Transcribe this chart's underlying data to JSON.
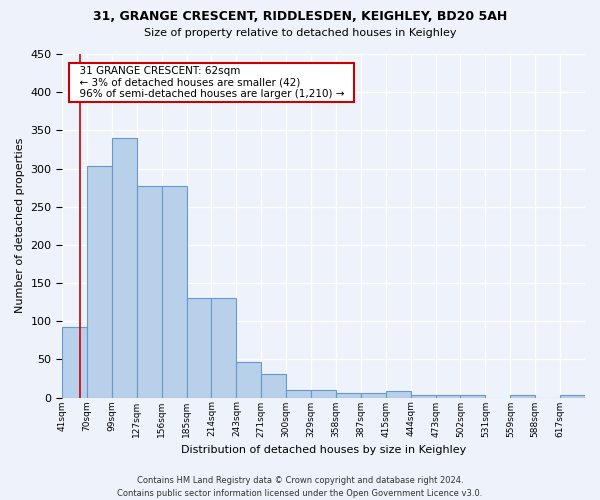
{
  "title1": "31, GRANGE CRESCENT, RIDDLESDEN, KEIGHLEY, BD20 5AH",
  "title2": "Size of property relative to detached houses in Keighley",
  "xlabel": "Distribution of detached houses by size in Keighley",
  "ylabel": "Number of detached properties",
  "footnote": "Contains HM Land Registry data © Crown copyright and database right 2024.\nContains public sector information licensed under the Open Government Licence v3.0.",
  "bin_labels": [
    "41sqm",
    "70sqm",
    "99sqm",
    "127sqm",
    "156sqm",
    "185sqm",
    "214sqm",
    "243sqm",
    "271sqm",
    "300sqm",
    "329sqm",
    "358sqm",
    "387sqm",
    "415sqm",
    "444sqm",
    "473sqm",
    "502sqm",
    "531sqm",
    "559sqm",
    "588sqm",
    "617sqm"
  ],
  "bar_heights": [
    92,
    303,
    340,
    277,
    277,
    131,
    131,
    46,
    31,
    10,
    10,
    6,
    6,
    8,
    3,
    3,
    3,
    0,
    3,
    0,
    3
  ],
  "bar_color": "#b8d0ea",
  "bar_edge_color": "#6699cc",
  "annotation_box_color": "#cc0000",
  "annotation_text": "  31 GRANGE CRESCENT: 62sqm  \n  ← 3% of detached houses are smaller (42)  \n  96% of semi-detached houses are larger (1,210) →  ",
  "property_line_x": 62,
  "ylim": [
    0,
    450
  ],
  "yticks": [
    0,
    50,
    100,
    150,
    200,
    250,
    300,
    350,
    400,
    450
  ],
  "bg_color": "#eef2fb",
  "plot_bg_color": "#eef2fb",
  "grid_color": "#ffffff"
}
